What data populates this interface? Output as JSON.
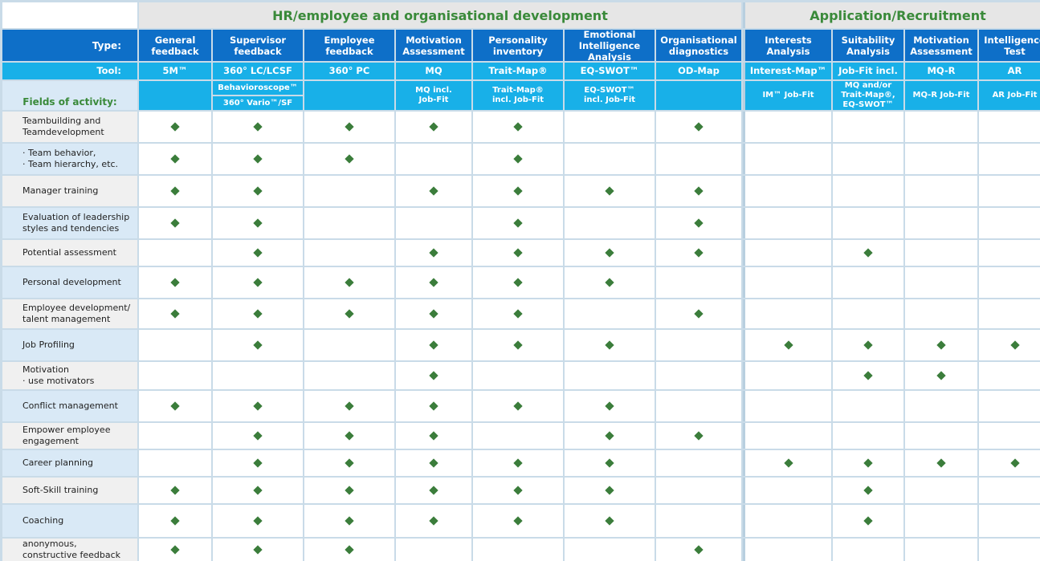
{
  "groups": {
    "hr": "HR/employee and organisational development",
    "app": "Application/Recruitment"
  },
  "header_labels": {
    "type": "Type:",
    "tool": "Tool:",
    "fields": "Fields of activity:"
  },
  "columns": [
    {
      "type": "General\nfeedback",
      "tool": "5M™",
      "sub": ""
    },
    {
      "type": "Supervisor\nfeedback",
      "tool": "360° LC/LCSF",
      "sub_a": "Behavioroscope™",
      "sub_b": "360° Vario™/SF"
    },
    {
      "type": "Employee\nfeedback",
      "tool": "360° PC",
      "sub": ""
    },
    {
      "type": "Motivation\nAssessment",
      "tool": "MQ",
      "sub": "MQ incl.\nJob-Fit"
    },
    {
      "type": "Personality\ninventory",
      "tool": "Trait-Map®",
      "sub": "Trait-Map®\nincl. Job-Fit"
    },
    {
      "type": "Emotional\nIntelligence\nAnalysis",
      "tool": "EQ-SWOT™",
      "sub": "EQ-SWOT™\nincl. Job-Fit"
    },
    {
      "type": "Organisational\ndiagnostics",
      "tool": "OD-Map",
      "sub": ""
    },
    {
      "type": "Interests\nAnalysis",
      "tool": "Interest-Map™",
      "sub": "IM™ Job-Fit"
    },
    {
      "type": "Suitability\nAnalysis",
      "tool": "Job-Fit incl.",
      "sub": "MQ and/or\nTrait-Map®,\nEQ-SWOT™"
    },
    {
      "type": "Motivation\nAssessment",
      "tool": "MQ-R",
      "sub": "MQ-R Job-Fit"
    },
    {
      "type": "Intelligence\nTest",
      "tool": "AR",
      "sub": "AR Job-Fit"
    }
  ],
  "rows": [
    {
      "label": "Teambuilding and\nTeamdevelopment",
      "marks": [
        1,
        1,
        1,
        1,
        1,
        0,
        1,
        0,
        0,
        0,
        0
      ]
    },
    {
      "label": "· Team behavior,\n· Team hierarchy, etc.",
      "marks": [
        1,
        1,
        1,
        0,
        1,
        0,
        0,
        0,
        0,
        0,
        0
      ]
    },
    {
      "label": "Manager training",
      "marks": [
        1,
        1,
        0,
        1,
        1,
        1,
        1,
        0,
        0,
        0,
        0
      ]
    },
    {
      "label": "Evaluation of leadership\nstyles and tendencies",
      "marks": [
        1,
        1,
        0,
        0,
        1,
        0,
        1,
        0,
        0,
        0,
        0
      ]
    },
    {
      "label": "Potential assessment",
      "marks": [
        0,
        1,
        0,
        1,
        1,
        1,
        1,
        0,
        1,
        0,
        0
      ]
    },
    {
      "label": "Personal development",
      "marks": [
        1,
        1,
        1,
        1,
        1,
        1,
        0,
        0,
        0,
        0,
        0
      ]
    },
    {
      "label": "Employee development/\ntalent management",
      "marks": [
        1,
        1,
        1,
        1,
        1,
        0,
        1,
        0,
        0,
        0,
        0
      ]
    },
    {
      "label": "Job Profiling",
      "marks": [
        0,
        1,
        0,
        1,
        1,
        1,
        0,
        1,
        1,
        1,
        1
      ]
    },
    {
      "label": "Motivation\n· use motivators",
      "marks": [
        0,
        0,
        0,
        1,
        0,
        0,
        0,
        0,
        1,
        1,
        0
      ]
    },
    {
      "label": "Conflict management",
      "marks": [
        1,
        1,
        1,
        1,
        1,
        1,
        0,
        0,
        0,
        0,
        0
      ]
    },
    {
      "label": "Empower employee\nengagement",
      "marks": [
        0,
        1,
        1,
        1,
        0,
        1,
        1,
        0,
        0,
        0,
        0
      ]
    },
    {
      "label": "Career planning",
      "marks": [
        0,
        1,
        1,
        1,
        1,
        1,
        0,
        1,
        1,
        1,
        1
      ]
    },
    {
      "label": "Soft-Skill training",
      "marks": [
        1,
        1,
        1,
        1,
        1,
        1,
        0,
        0,
        1,
        0,
        0
      ]
    },
    {
      "label": "Coaching",
      "marks": [
        1,
        1,
        1,
        1,
        1,
        1,
        0,
        0,
        1,
        0,
        0
      ]
    },
    {
      "label": "anonymous,\nconstructive feedback",
      "marks": [
        1,
        1,
        1,
        0,
        0,
        0,
        1,
        0,
        0,
        0,
        0
      ]
    }
  ],
  "colors": {
    "header_blue": "#0e6fc8",
    "tool_blue": "#18b0e8",
    "group_green": "#3a8a3a",
    "mark_green": "#3b7d3b"
  }
}
